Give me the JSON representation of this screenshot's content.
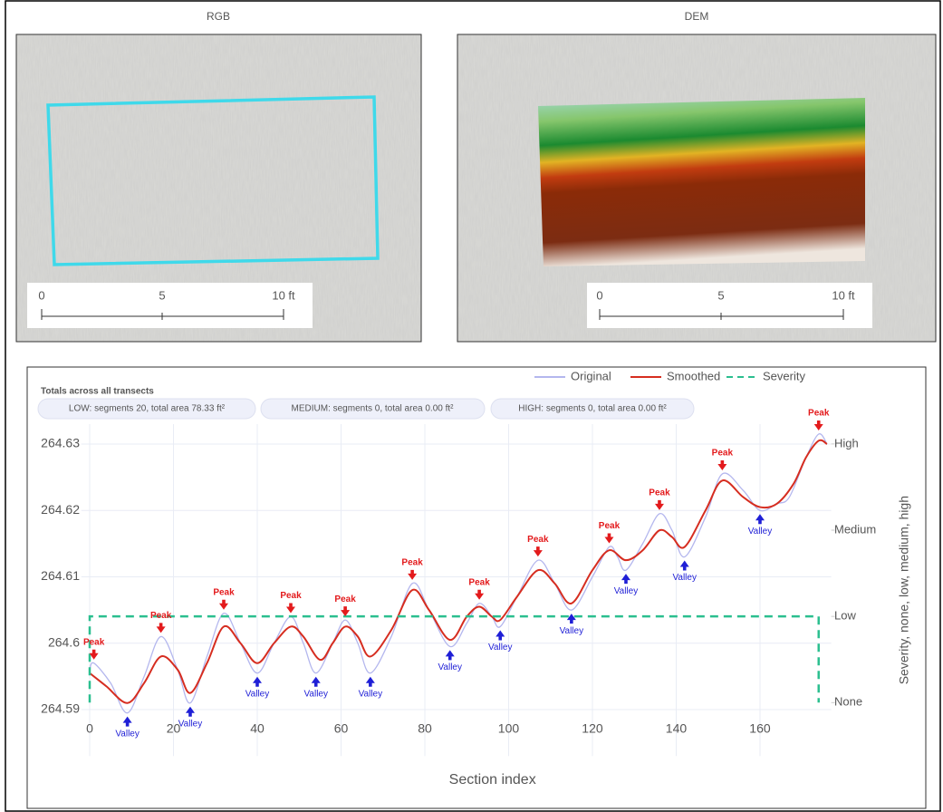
{
  "panels": [
    {
      "title": "RGB",
      "scale_labels": [
        "0",
        "5",
        "10 ft"
      ]
    },
    {
      "title": "DEM",
      "scale_labels": [
        "0",
        "5",
        "10 ft"
      ]
    }
  ],
  "totals": {
    "title": "Totals across all transects",
    "items": [
      "LOW: segments 20, total area 78.33 ft²",
      "MEDIUM: segments 0, total area 0.00 ft²",
      "HIGH: segments 0, total area 0.00 ft²"
    ]
  },
  "chart_data": {
    "type": "line",
    "xlabel": "Section index",
    "y2label": "Severity, none, low, medium, high",
    "xlim": [
      -2,
      177
    ],
    "xticks": [
      0,
      20,
      40,
      60,
      80,
      100,
      120,
      140,
      160
    ],
    "ylim": [
      264.583,
      264.633
    ],
    "yticks": [
      264.59,
      264.6,
      264.61,
      264.62,
      264.63
    ],
    "y2lim": [
      -0.62,
      3.23
    ],
    "y2ticks": [
      {
        "value": 0,
        "label": "None"
      },
      {
        "value": 1,
        "label": "Low"
      },
      {
        "value": 2,
        "label": "Medium"
      },
      {
        "value": 3,
        "label": "High"
      }
    ],
    "grid": true,
    "legend": "top-right",
    "series": [
      {
        "name": "Original",
        "color": "#b4b7ee",
        "x": [
          0,
          1,
          5,
          9,
          13,
          17,
          21,
          24,
          28,
          32,
          36,
          40,
          44,
          48,
          51,
          54,
          58,
          61,
          64,
          67,
          72,
          77,
          81,
          86,
          90,
          93,
          96,
          98,
          102,
          107,
          111,
          115,
          120,
          124,
          126,
          128,
          132,
          136,
          139,
          142,
          147,
          151,
          156,
          160,
          164,
          167,
          171,
          174,
          176
        ],
        "values": [
          264.596,
          264.597,
          264.594,
          264.5895,
          264.595,
          264.601,
          264.596,
          264.591,
          264.598,
          264.6045,
          264.6,
          264.5955,
          264.6,
          264.604,
          264.6,
          264.5955,
          264.6,
          264.6035,
          264.6,
          264.5955,
          264.601,
          264.609,
          264.605,
          264.5995,
          264.603,
          264.606,
          264.604,
          264.6025,
          264.607,
          264.6125,
          264.609,
          264.605,
          264.61,
          264.6145,
          264.613,
          264.611,
          264.615,
          264.6195,
          264.617,
          264.613,
          264.619,
          264.6255,
          264.623,
          264.62,
          264.621,
          264.622,
          264.628,
          264.6315,
          264.63
        ]
      },
      {
        "name": "Smoothed",
        "color": "#d62d20",
        "x": [
          0,
          4,
          9,
          13,
          17,
          21,
          24,
          28,
          32,
          36,
          40,
          44,
          48,
          51,
          55,
          58,
          61,
          64,
          67,
          72,
          77,
          81,
          86,
          90,
          93,
          96,
          98,
          102,
          107,
          111,
          115,
          120,
          124,
          128,
          132,
          136,
          139,
          142,
          147,
          151,
          156,
          160,
          164,
          168,
          171,
          174,
          176
        ],
        "values": [
          264.5955,
          264.5935,
          264.591,
          264.594,
          264.598,
          264.596,
          264.5925,
          264.597,
          264.6025,
          264.6,
          264.597,
          264.6,
          264.6025,
          264.601,
          264.5975,
          264.6,
          264.6025,
          264.601,
          264.598,
          264.602,
          264.608,
          264.605,
          264.6005,
          264.604,
          264.6055,
          264.604,
          264.6035,
          264.607,
          264.611,
          264.609,
          264.606,
          264.611,
          264.614,
          264.6125,
          264.614,
          264.617,
          264.616,
          264.6145,
          264.62,
          264.6245,
          264.622,
          264.6205,
          264.621,
          264.624,
          264.628,
          264.6305,
          264.63
        ]
      },
      {
        "name": "Severity",
        "color": "#2bbf8f",
        "axis": "y2",
        "dash": true,
        "x": [
          0,
          0,
          174,
          174
        ],
        "values": [
          0,
          1,
          1,
          0
        ]
      }
    ],
    "peak_markers": {
      "label": "Peak",
      "color": "#e31a1c",
      "x": [
        1,
        17,
        32,
        48,
        61,
        77,
        93,
        107,
        124,
        136,
        151,
        174
      ],
      "y": [
        264.597,
        264.601,
        264.6045,
        264.604,
        264.6035,
        264.609,
        264.606,
        264.6125,
        264.6145,
        264.6195,
        264.6255,
        264.6315
      ]
    },
    "valley_markers": {
      "label": "Valley",
      "color": "#1f1fd6",
      "x": [
        9,
        24,
        40,
        54,
        67,
        86,
        98,
        115,
        128,
        142,
        160
      ],
      "y": [
        264.5895,
        264.591,
        264.5955,
        264.5955,
        264.5955,
        264.5995,
        264.6025,
        264.605,
        264.611,
        264.613,
        264.62
      ]
    }
  }
}
